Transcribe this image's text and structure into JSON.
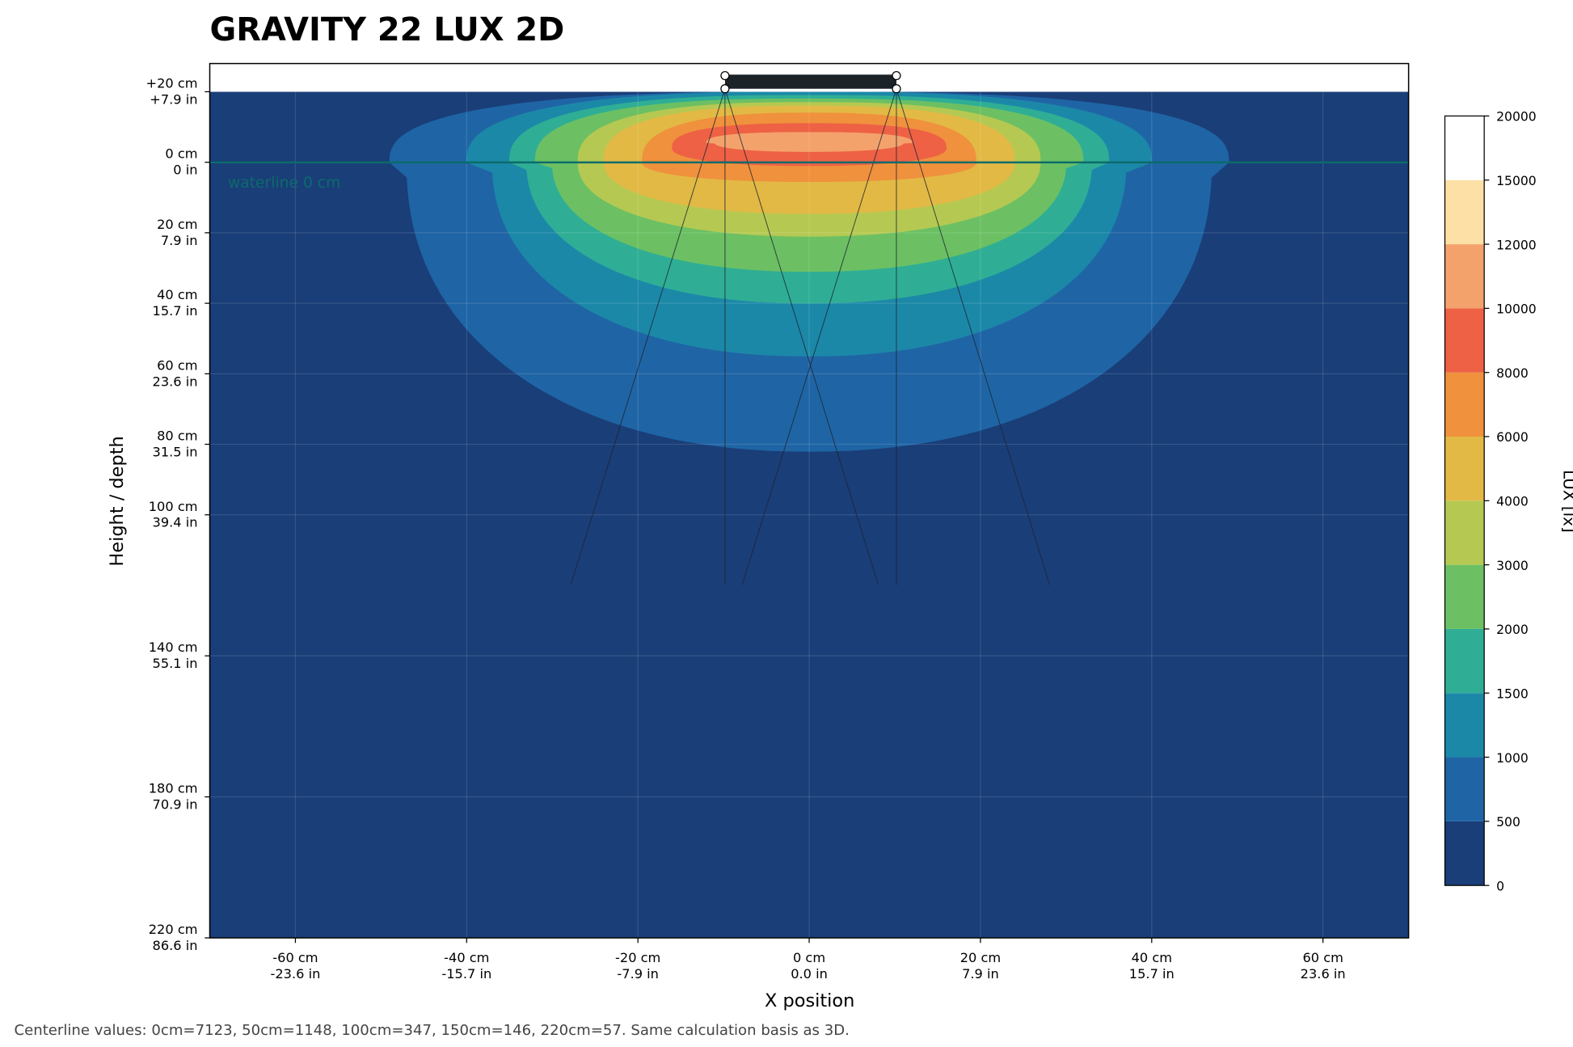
{
  "chart_data": {
    "type": "contour",
    "title": "GRAVITY 22 LUX 2D",
    "xlabel": "X position",
    "ylabel": "Height / depth",
    "xlim": [
      -70,
      70
    ],
    "ylim": [
      220,
      -28
    ],
    "xticks": [
      {
        "value": -60,
        "label": [
          "-60 cm",
          "-23.6 in"
        ]
      },
      {
        "value": -40,
        "label": [
          "-40 cm",
          "-15.7 in"
        ]
      },
      {
        "value": -20,
        "label": [
          "-20 cm",
          "-7.9 in"
        ]
      },
      {
        "value": 0,
        "label": [
          "0 cm",
          "0.0 in"
        ]
      },
      {
        "value": 20,
        "label": [
          "20 cm",
          "7.9 in"
        ]
      },
      {
        "value": 40,
        "label": [
          "40 cm",
          "15.7 in"
        ]
      },
      {
        "value": 60,
        "label": [
          "60 cm",
          "23.6 in"
        ]
      }
    ],
    "yticks": [
      {
        "value": -20,
        "label": [
          "+20 cm",
          "+7.9 in"
        ]
      },
      {
        "value": 0,
        "label": [
          "0 cm",
          "0 in"
        ]
      },
      {
        "value": 20,
        "label": [
          "20 cm",
          "7.9 in"
        ]
      },
      {
        "value": 40,
        "label": [
          "40 cm",
          "15.7 in"
        ]
      },
      {
        "value": 60,
        "label": [
          "60 cm",
          "23.6 in"
        ]
      },
      {
        "value": 80,
        "label": [
          "80 cm",
          "31.5 in"
        ]
      },
      {
        "value": 100,
        "label": [
          "100 cm",
          "39.4 in"
        ]
      },
      {
        "value": 140,
        "label": [
          "140 cm",
          "55.1 in"
        ]
      },
      {
        "value": 180,
        "label": [
          "180 cm",
          "70.9 in"
        ]
      },
      {
        "value": 220,
        "label": [
          "220 cm",
          "86.6 in"
        ]
      }
    ],
    "grid": true,
    "levels": [
      0,
      500,
      1000,
      1500,
      2000,
      3000,
      4000,
      6000,
      8000,
      10000,
      12000,
      15000,
      20000
    ],
    "colors": [
      "#1a3e78",
      "#1f65a5",
      "#1c88a8",
      "#2fae95",
      "#6cc063",
      "#b5c952",
      "#e2b945",
      "#f0913d",
      "#ee6145",
      "#f4a26b",
      "#fce0a5",
      "#ffffff"
    ],
    "colorbar_label": "LUX [lx]",
    "annotation": "waterline 0 cm",
    "footnote": "Centerline values: 0cm=7123, 50cm=1148, 100cm=347, 150cm=146, 220cm=57. Same calculation basis as 3D."
  }
}
